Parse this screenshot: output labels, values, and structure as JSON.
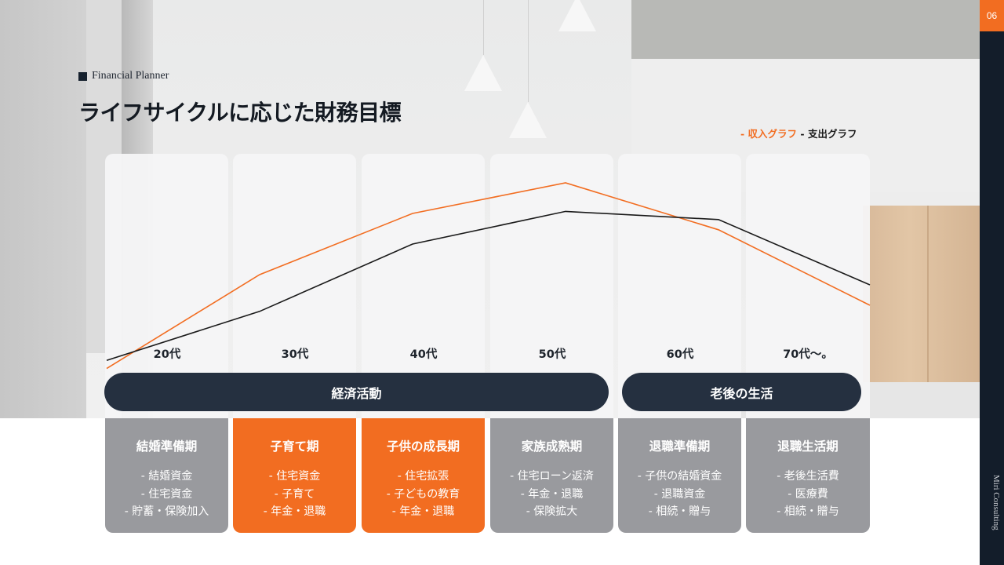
{
  "slide": {
    "page_number": "06",
    "eyebrow": "Financial Planner",
    "title": "ライフサイクルに応じた財務目標",
    "brand": "Miri Consulting"
  },
  "legend": {
    "income": "- 収入グラフ",
    "expense": " - 支出グラフ",
    "income_color": "#f26d21",
    "expense_color": "#1a1a1a"
  },
  "ages": [
    "20代",
    "30代",
    "40代",
    "50代",
    "60代",
    "70代〜。"
  ],
  "groups": [
    {
      "label": "経済活動"
    },
    {
      "label": "老後の生活"
    }
  ],
  "phases": [
    {
      "title": "結婚準備期",
      "style": "gray",
      "items": [
        "- 結婚資金",
        "- 住宅資金",
        "- 貯蓄・保険加入"
      ]
    },
    {
      "title": "子育て期",
      "style": "orange",
      "items": [
        "- 住宅資金",
        "- 子育て",
        "- 年金・退職"
      ]
    },
    {
      "title": "子供の成長期",
      "style": "orange",
      "items": [
        "- 住宅拡張",
        "- 子どもの教育",
        "- 年金・退職"
      ]
    },
    {
      "title": "家族成熟期",
      "style": "gray",
      "items": [
        "- 住宅ローン返済",
        "- 年金・退職",
        "- 保険拡大"
      ]
    },
    {
      "title": "退職準備期",
      "style": "gray",
      "items": [
        "- 子供の結婚資金",
        "- 退職資金",
        "- 相続・贈与"
      ]
    },
    {
      "title": "退職生活期",
      "style": "gray",
      "items": [
        "- 老後生活費",
        "- 医療費",
        "- 相続・贈与"
      ]
    }
  ],
  "colors": {
    "accent": "#f26d21",
    "navy": "#131d2a",
    "pill": "#253040",
    "phase_gray": "#999a9e"
  },
  "chart_data": {
    "type": "line",
    "title": "ライフサイクルに応じた財務目標",
    "categories": [
      "20代",
      "30代",
      "40代",
      "50代",
      "60代",
      "70代〜。"
    ],
    "series": [
      {
        "name": "収入グラフ",
        "color": "#f26d21",
        "values": [
          4,
          50,
          80,
          95,
          72,
          35
        ]
      },
      {
        "name": "支出グラフ",
        "color": "#1a1a1a",
        "values": [
          8,
          32,
          65,
          81,
          77,
          45
        ]
      }
    ],
    "xlabel": "",
    "ylabel": "",
    "ylim": [
      0,
      100
    ],
    "grid": false,
    "legend_position": "top-right",
    "note": "Values are relative (no y-axis shown); estimated from line positions."
  }
}
